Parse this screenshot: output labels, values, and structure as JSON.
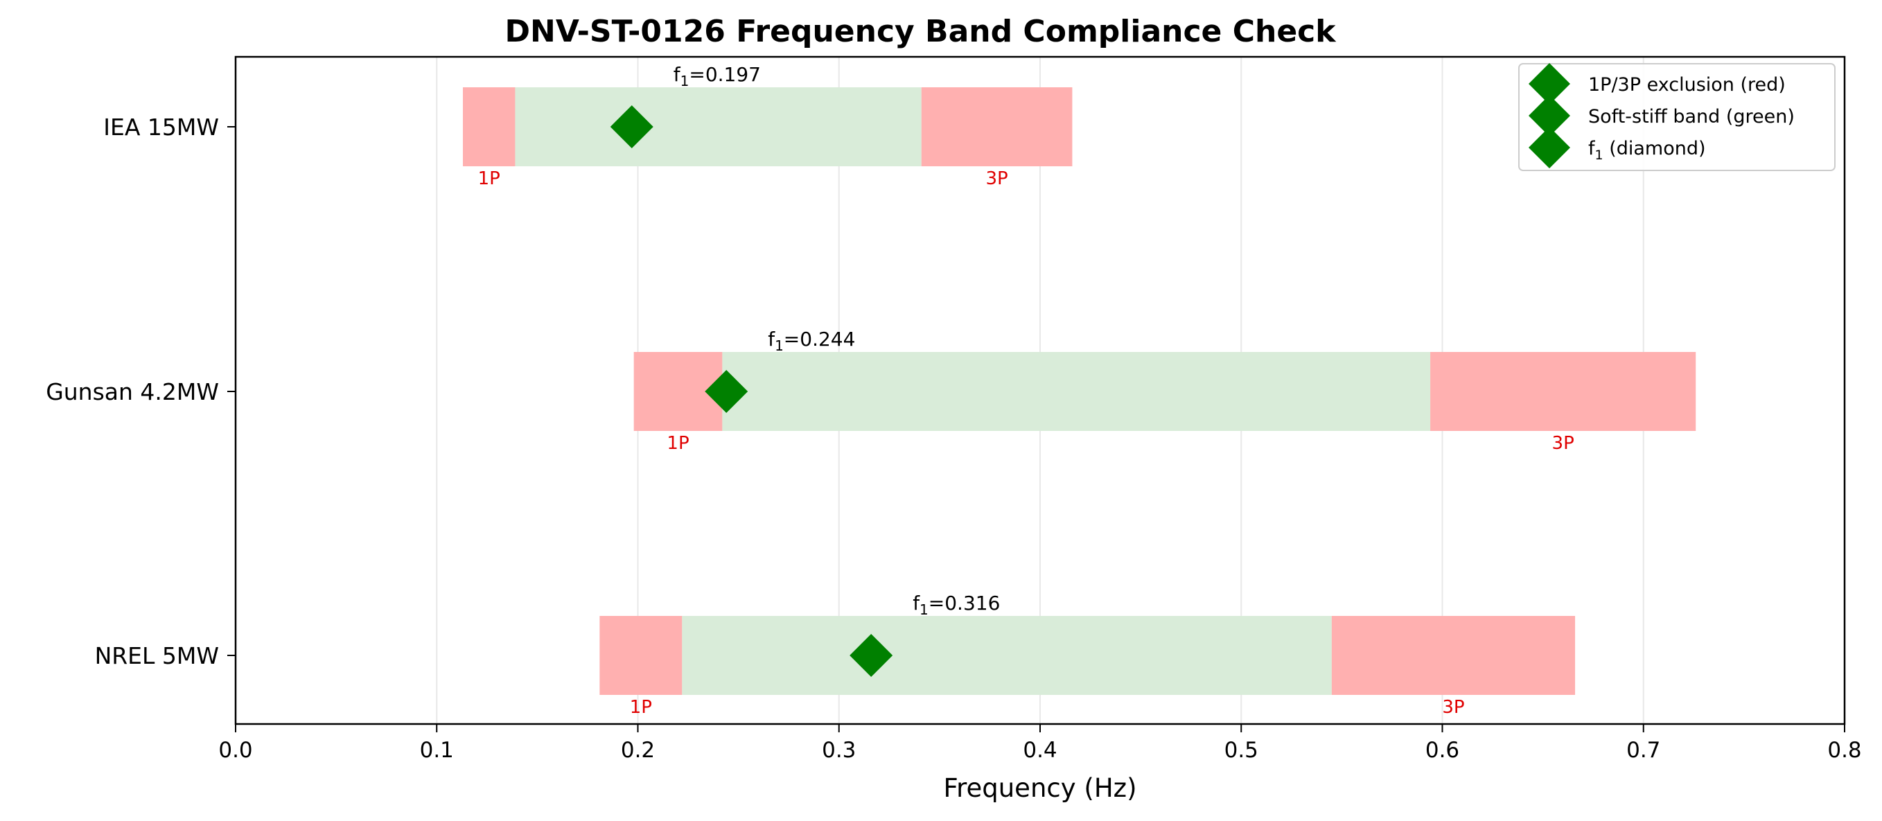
{
  "chart_data": {
    "type": "range-bar",
    "title": "DNV-ST-0126 Frequency Band Compliance Check",
    "xlabel": "Frequency (Hz)",
    "ylabel": "",
    "xlim": [
      0.0,
      0.8
    ],
    "xticks": [
      0.0,
      0.1,
      0.2,
      0.3,
      0.4,
      0.5,
      0.6,
      0.7,
      0.8
    ],
    "xtick_labels": [
      "0.0",
      "0.1",
      "0.2",
      "0.3",
      "0.4",
      "0.5",
      "0.6",
      "0.7",
      "0.8"
    ],
    "grid": "vertical",
    "legend": {
      "placement": "top-right",
      "entries": [
        {
          "label": "1P/3P exclusion (red)",
          "marker": "diamond",
          "color": "#008000"
        },
        {
          "label": "Soft-stiff band (green)",
          "marker": "diamond",
          "color": "#008000"
        },
        {
          "label": "f1 (diamond)",
          "base": "f",
          "sub": "1",
          "tail": " (diamond)",
          "marker": "diamond",
          "color": "#008000"
        }
      ]
    },
    "colors": {
      "exclusion": "#ffb0b0",
      "soft_stiff": "#d9ecd9",
      "marker": "#008000",
      "band_label": "#e00000",
      "grid": "#e8e8e8"
    },
    "band_label_1p": "1P",
    "band_label_3p": "3P",
    "turbines": [
      {
        "name": "IEA 15MW",
        "p1_band": [
          0.113,
          0.139
        ],
        "soft_stiff": [
          0.139,
          0.341
        ],
        "p3_band": [
          0.341,
          0.416
        ],
        "f1": 0.197,
        "f1_label": "f1=0.197",
        "f1_base": "f",
        "f1_sub": "1",
        "f1_value": "=0.197"
      },
      {
        "name": "Gunsan 4.2MW",
        "p1_band": [
          0.198,
          0.242
        ],
        "soft_stiff": [
          0.242,
          0.594
        ],
        "p3_band": [
          0.594,
          0.726
        ],
        "f1": 0.244,
        "f1_label": "f1=0.244",
        "f1_base": "f",
        "f1_sub": "1",
        "f1_value": "=0.244"
      },
      {
        "name": "NREL 5MW",
        "p1_band": [
          0.181,
          0.222
        ],
        "soft_stiff": [
          0.222,
          0.545
        ],
        "p3_band": [
          0.545,
          0.666
        ],
        "f1": 0.316,
        "f1_label": "f1=0.316",
        "f1_base": "f",
        "f1_sub": "1",
        "f1_value": "=0.316"
      }
    ]
  }
}
